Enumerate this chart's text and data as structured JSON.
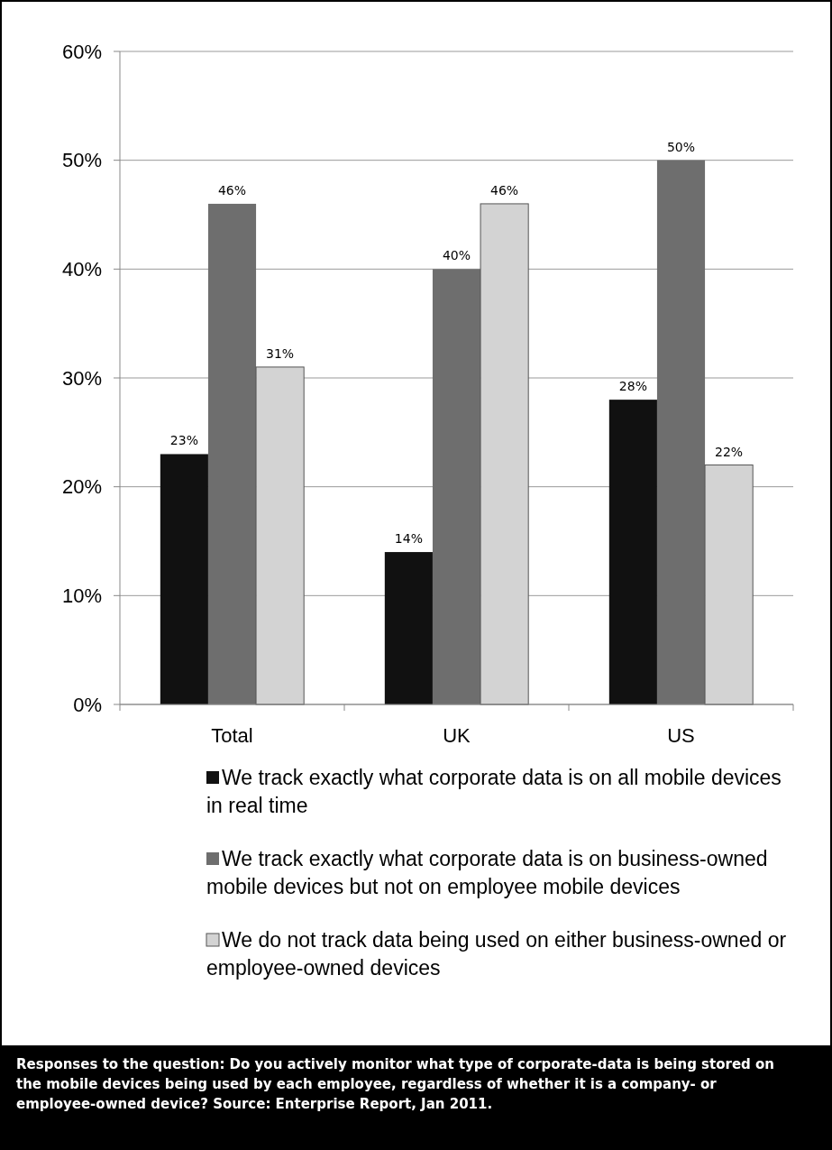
{
  "chart_data": {
    "type": "bar",
    "categories": [
      "Total",
      "UK",
      "US"
    ],
    "series": [
      {
        "name": "We track exactly what corporate data is on all mobile devices in real time",
        "color": "#111111",
        "values": [
          23,
          14,
          28
        ],
        "value_labels": [
          "23%",
          "14%",
          "28%"
        ]
      },
      {
        "name": "We track exactly what corporate data is on business-owned mobile devices but not on employee mobile devices",
        "color": "#6e6e6e",
        "values": [
          46,
          40,
          50
        ],
        "value_labels": [
          "46%",
          "40%",
          "50%"
        ]
      },
      {
        "name": "We do not track data being used on either business-owned or employee-owned devices",
        "color": "#d3d3d3",
        "values": [
          31,
          46,
          22
        ],
        "value_labels": [
          "31%",
          "46%",
          "22%"
        ]
      }
    ],
    "ylim": [
      0,
      60
    ],
    "yticks": [
      {
        "value": 0,
        "label": "0%"
      },
      {
        "value": 10,
        "label": "10%"
      },
      {
        "value": 20,
        "label": "20%"
      },
      {
        "value": 30,
        "label": "30%"
      },
      {
        "value": 40,
        "label": "40%"
      },
      {
        "value": 50,
        "label": "50%"
      },
      {
        "value": 60,
        "label": "60%"
      }
    ],
    "grid": "y",
    "legend": "bottom",
    "annotations": [
      "Responses to the question: Do you actively monitor what type of corporate-data is being stored on the mobile devices being used by each employee, regardless of whether it is a company- or employee-owned device? Source: Enterprise Report, Jan 2011."
    ]
  }
}
